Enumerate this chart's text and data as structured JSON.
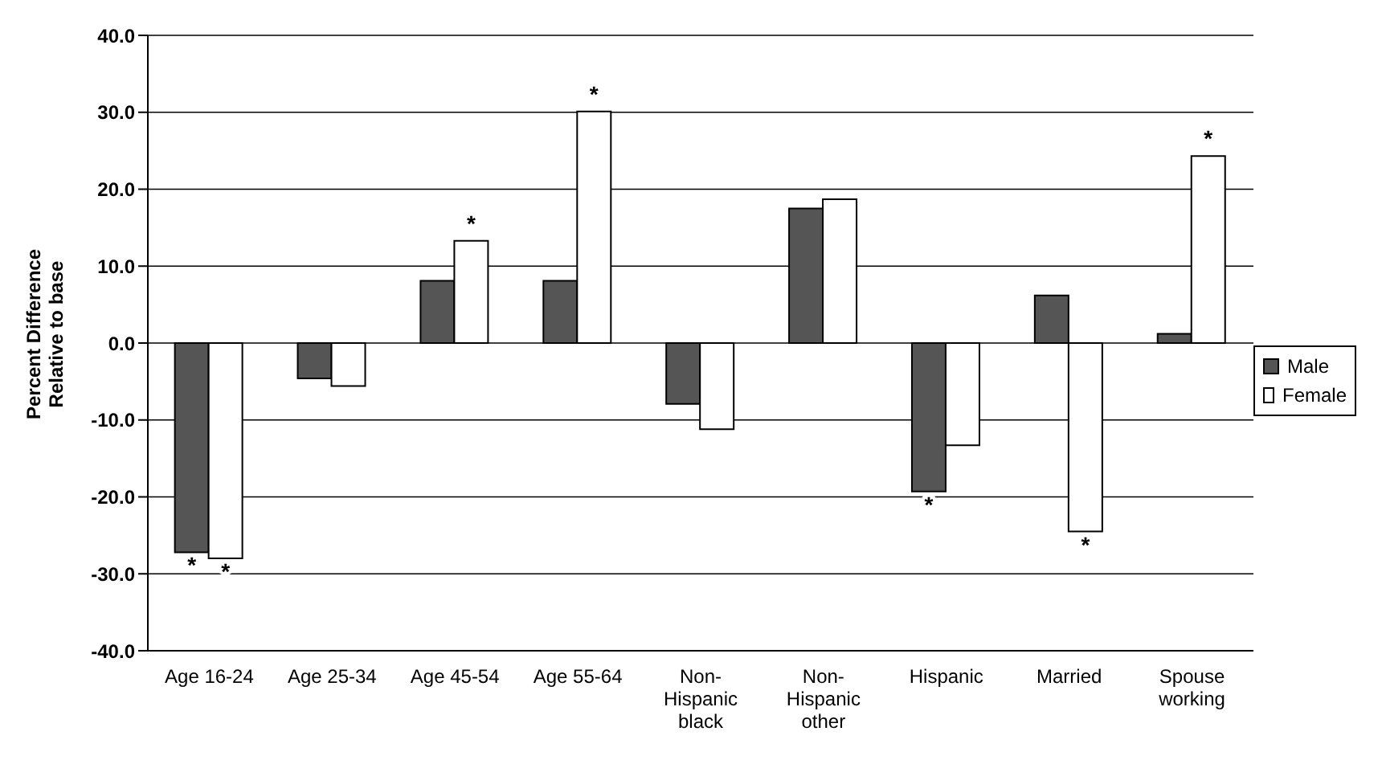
{
  "chart_data": {
    "type": "bar",
    "ylabel": "Percent Difference Relative to base",
    "categories": [
      "Age 16-24",
      "Age 25-34",
      "Age 45-54",
      "Age 55-64",
      "Non-Hispanic black",
      "Non-Hispanic other",
      "Hispanic",
      "Married",
      "Spouse working"
    ],
    "series": [
      {
        "name": "Male",
        "color": "#555555",
        "values": [
          -27.2,
          -4.6,
          8.1,
          8.1,
          -7.9,
          17.5,
          -19.3,
          6.2,
          1.2
        ]
      },
      {
        "name": "Female",
        "color": "#ffffff",
        "values": [
          -28.0,
          -5.6,
          13.3,
          30.1,
          -11.2,
          18.7,
          -13.3,
          -24.5,
          24.3
        ]
      }
    ],
    "ylim": [
      -40,
      40
    ],
    "yticks": [
      {
        "value": -40,
        "label": "-40.0"
      },
      {
        "value": -30,
        "label": "-30.0"
      },
      {
        "value": -20,
        "label": "-20.0"
      },
      {
        "value": -10,
        "label": "-10.0"
      },
      {
        "value": 0,
        "label": "0.0"
      },
      {
        "value": 10,
        "label": "10.0"
      },
      {
        "value": 20,
        "label": "20.0"
      },
      {
        "value": 30,
        "label": "30.0"
      },
      {
        "value": 40,
        "label": "40.0"
      }
    ],
    "grid": "y",
    "legend": "right",
    "annotations": [
      {
        "text": "*",
        "x": "Age 16-24",
        "y": -27.2
      },
      {
        "text": "*",
        "x": "Age 16-24",
        "y": -28.0
      },
      {
        "text": "*",
        "x": "Age 45-54",
        "y": 13.3
      },
      {
        "text": "*",
        "x": "Age 55-64",
        "y": 30.1
      },
      {
        "text": "*",
        "x": "Hispanic",
        "y": -19.3
      },
      {
        "text": "*",
        "x": "Married",
        "y": -24.5
      },
      {
        "text": "*",
        "x": "Spouse working",
        "y": 24.3
      }
    ]
  }
}
